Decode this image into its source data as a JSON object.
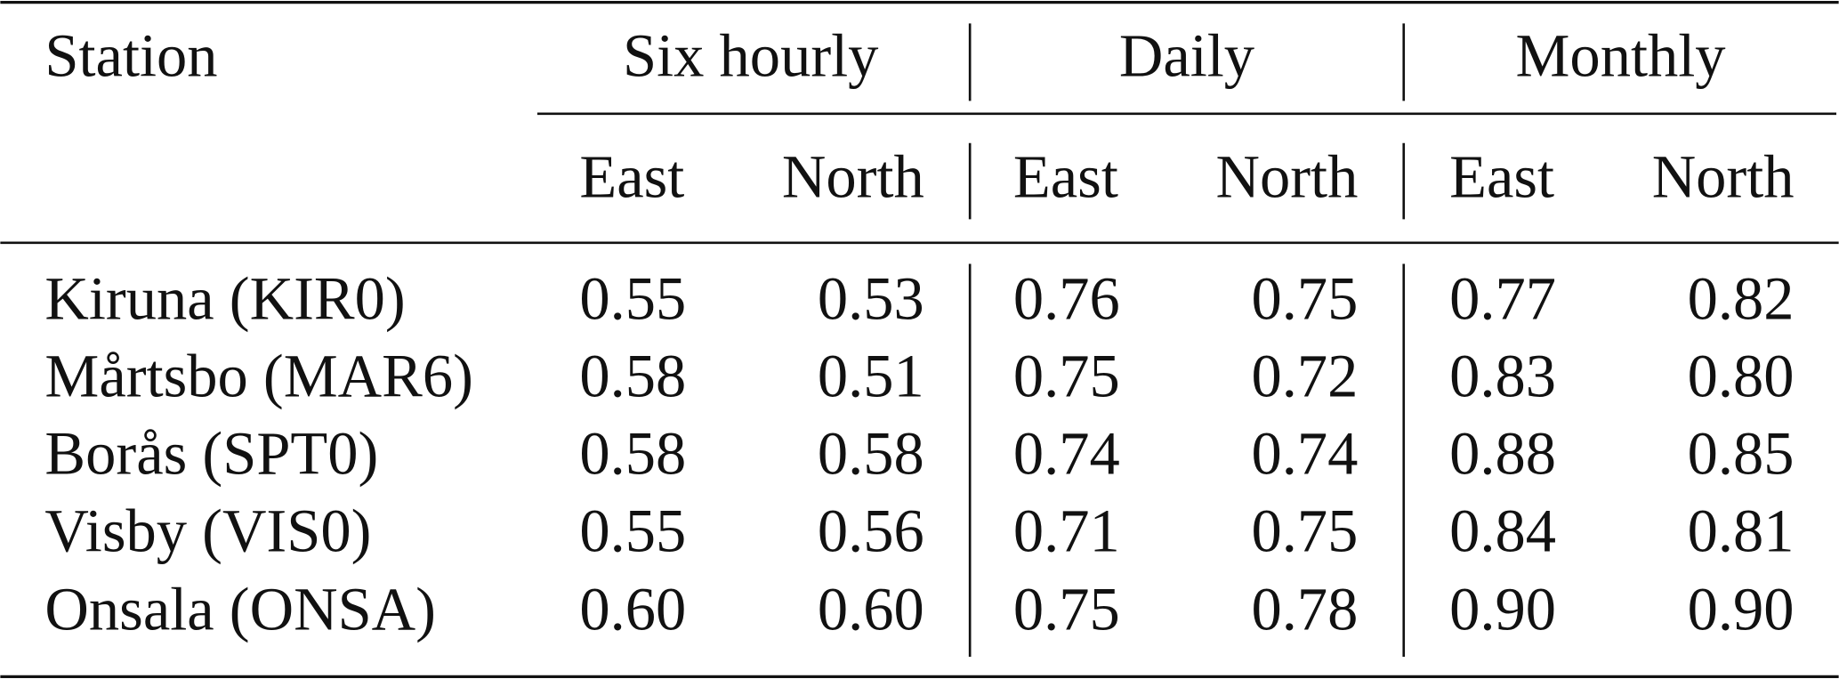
{
  "table": {
    "header": "Station",
    "groups": [
      "Six hourly",
      "Daily",
      "Monthly"
    ],
    "subheaders": [
      "East",
      "North",
      "East",
      "North",
      "East",
      "North"
    ],
    "rows": [
      [
        "Kiruna (KIR0)",
        "0.55",
        "0.53",
        "0.76",
        "0.75",
        "0.77",
        "0.82"
      ],
      [
        "Mårtsbo (MAR6)",
        "0.58",
        "0.51",
        "0.75",
        "0.72",
        "0.83",
        "0.80"
      ],
      [
        "Borås (SPT0)",
        "0.58",
        "0.58",
        "0.74",
        "0.74",
        "0.88",
        "0.85"
      ],
      [
        "Visby (VIS0)",
        "0.55",
        "0.56",
        "0.71",
        "0.75",
        "0.84",
        "0.81"
      ],
      [
        "Onsala (ONSA)",
        "0.60",
        "0.60",
        "0.75",
        "0.78",
        "0.90",
        "0.90"
      ]
    ]
  }
}
